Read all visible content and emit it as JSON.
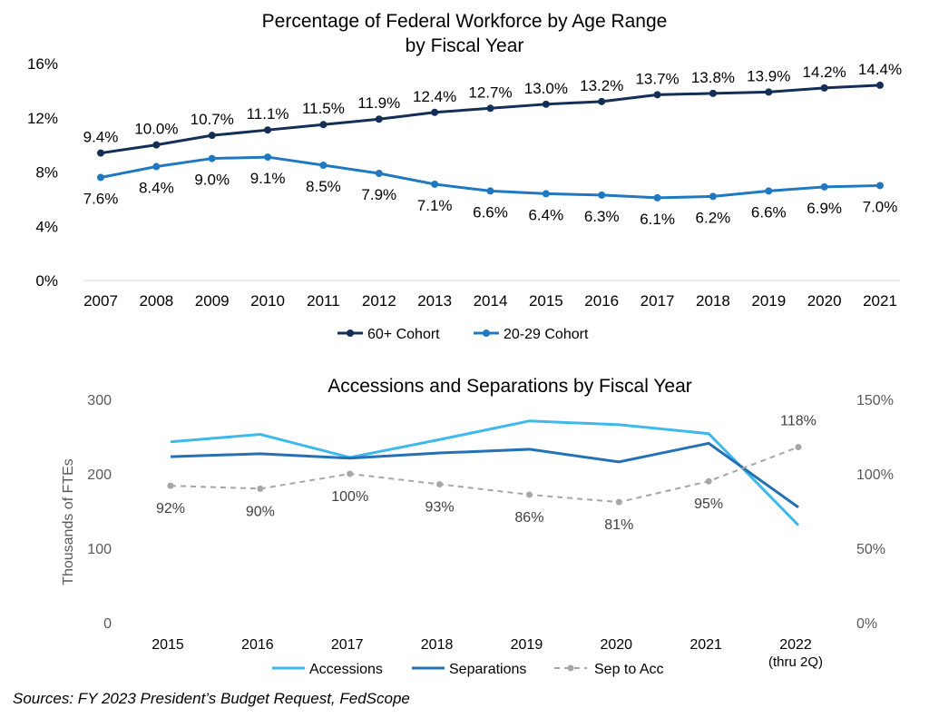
{
  "chart_data": [
    {
      "type": "line",
      "title": "Percentage of Federal Workforce by Age Range",
      "subtitle": "by Fiscal Year",
      "categories": [
        "2007",
        "2008",
        "2009",
        "2010",
        "2011",
        "2012",
        "2013",
        "2014",
        "2015",
        "2016",
        "2017",
        "2018",
        "2019",
        "2020",
        "2021"
      ],
      "ylim": [
        0,
        16
      ],
      "yticks": [
        "0%",
        "4%",
        "8%",
        "12%",
        "16%"
      ],
      "ytick_values": [
        0,
        4,
        8,
        12,
        16
      ],
      "grid": false,
      "legend": "bottom",
      "series": [
        {
          "name": "60+ Cohort",
          "color": "#132e57",
          "values": [
            9.4,
            10.0,
            10.7,
            11.1,
            11.5,
            11.9,
            12.4,
            12.7,
            13.0,
            13.2,
            13.7,
            13.8,
            13.9,
            14.2,
            14.4
          ],
          "labels": [
            "9.4%",
            "10.0%",
            "10.7%",
            "11.1%",
            "11.5%",
            "11.9%",
            "12.4%",
            "12.7%",
            "13.0%",
            "13.2%",
            "13.7%",
            "13.8%",
            "13.9%",
            "14.2%",
            "14.4%"
          ]
        },
        {
          "name": "20-29 Cohort",
          "color": "#1f78c1",
          "values": [
            7.6,
            8.4,
            9.0,
            9.1,
            8.5,
            7.9,
            7.1,
            6.6,
            6.4,
            6.3,
            6.1,
            6.2,
            6.6,
            6.9,
            7.0
          ],
          "labels": [
            "7.6%",
            "8.4%",
            "9.0%",
            "9.1%",
            "8.5%",
            "7.9%",
            "7.1%",
            "6.6%",
            "6.4%",
            "6.3%",
            "6.1%",
            "6.2%",
            "6.6%",
            "6.9%",
            "7.0%"
          ]
        }
      ]
    },
    {
      "type": "line",
      "title": "Accessions and Separations by Fiscal Year",
      "categories": [
        "2015",
        "2016",
        "2017",
        "2018",
        "2019",
        "2020",
        "2021",
        "2022"
      ],
      "category_sublabels": [
        "",
        "",
        "",
        "",
        "",
        "",
        "",
        "(thru 2Q)"
      ],
      "ylabel": "Thousands of FTEs",
      "ylim": [
        0,
        300
      ],
      "yticks": [
        "0",
        "100",
        "200",
        "300"
      ],
      "ytick_values": [
        0,
        100,
        200,
        300
      ],
      "y2lim": [
        0,
        150
      ],
      "y2ticks": [
        "0%",
        "50%",
        "100%",
        "150%"
      ],
      "y2tick_values": [
        0,
        50,
        100,
        150
      ],
      "grid": false,
      "legend": "bottom",
      "series": [
        {
          "name": "Accessions",
          "color": "#3fb8ec",
          "axis": "left",
          "values": [
            243,
            253,
            222,
            246,
            271,
            266,
            254,
            131
          ]
        },
        {
          "name": "Separations",
          "color": "#2671b5",
          "axis": "left",
          "values": [
            223,
            227,
            221,
            228,
            233,
            216,
            241,
            155
          ]
        },
        {
          "name": "Sep to Acc",
          "color": "#a6a6a6",
          "axis": "right",
          "dashed": true,
          "values": [
            92,
            90,
            100,
            93,
            86,
            81,
            95,
            118
          ],
          "labels": [
            "92%",
            "90%",
            "100%",
            "93%",
            "86%",
            "81%",
            "95%",
            "118%"
          ]
        }
      ]
    }
  ],
  "source_note": "Sources: FY 2023 President’s Budget Request, FedScope"
}
